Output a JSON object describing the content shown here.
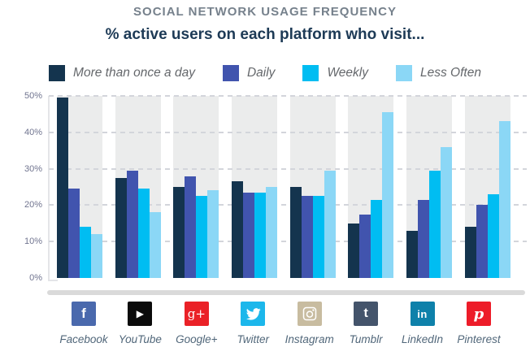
{
  "chart_data": {
    "type": "bar",
    "title": "SOCIAL NETWORK USAGE FREQUENCY",
    "subtitle": "% active users on each platform who visit...",
    "categories": [
      "Facebook",
      "YouTube",
      "Google+",
      "Twitter",
      "Instagram",
      "Tumblr",
      "LinkedIn",
      "Pinterest"
    ],
    "series": [
      {
        "name": "More than once a day",
        "color": "#14344e",
        "values": [
          49.5,
          27.5,
          25,
          26.5,
          25,
          15,
          13,
          14
        ]
      },
      {
        "name": "Daily",
        "color": "#4154ae",
        "values": [
          24.5,
          29.5,
          28,
          23.5,
          22.5,
          17.5,
          21.5,
          20
        ]
      },
      {
        "name": "Weekly",
        "color": "#00bdf2",
        "values": [
          14,
          24.5,
          22.5,
          23.5,
          22.5,
          21.5,
          29.5,
          23
        ]
      },
      {
        "name": "Less Often",
        "color": "#8bd7f6",
        "values": [
          12,
          18,
          24,
          25,
          29.5,
          45.5,
          36,
          43
        ]
      }
    ],
    "ylabel": "",
    "ylim": [
      0,
      50
    ],
    "yticks_top_to_bottom": [
      "50%",
      "40%",
      "30%",
      "20%",
      "10%",
      "0%"
    ],
    "grid": "dashed horizontal",
    "legend_position": "top",
    "band_color": "#ebecec"
  },
  "platforms": [
    {
      "label": "Facebook",
      "icon": "facebook-icon",
      "tile_color": "#4a69ad",
      "glyph": "f"
    },
    {
      "label": "YouTube",
      "icon": "youtube-icon",
      "tile_color": "#0b0b0b",
      "glyph": "▶"
    },
    {
      "label": "Google+",
      "icon": "google-plus-icon",
      "tile_color": "#ea2127",
      "glyph": "g+"
    },
    {
      "label": "Twitter",
      "icon": "twitter-icon",
      "tile_color": "#1cb7eb",
      "glyph": "bird"
    },
    {
      "label": "Instagram",
      "icon": "instagram-icon",
      "tile_color": "#c8bca0",
      "glyph": "camera"
    },
    {
      "label": "Tumblr",
      "icon": "tumblr-icon",
      "tile_color": "#44546b",
      "glyph": "t"
    },
    {
      "label": "LinkedIn",
      "icon": "linkedin-icon",
      "tile_color": "#0e81aa",
      "glyph": "in"
    },
    {
      "label": "Pinterest",
      "icon": "pinterest-icon",
      "tile_color": "#ed1c29",
      "glyph": "p"
    }
  ]
}
